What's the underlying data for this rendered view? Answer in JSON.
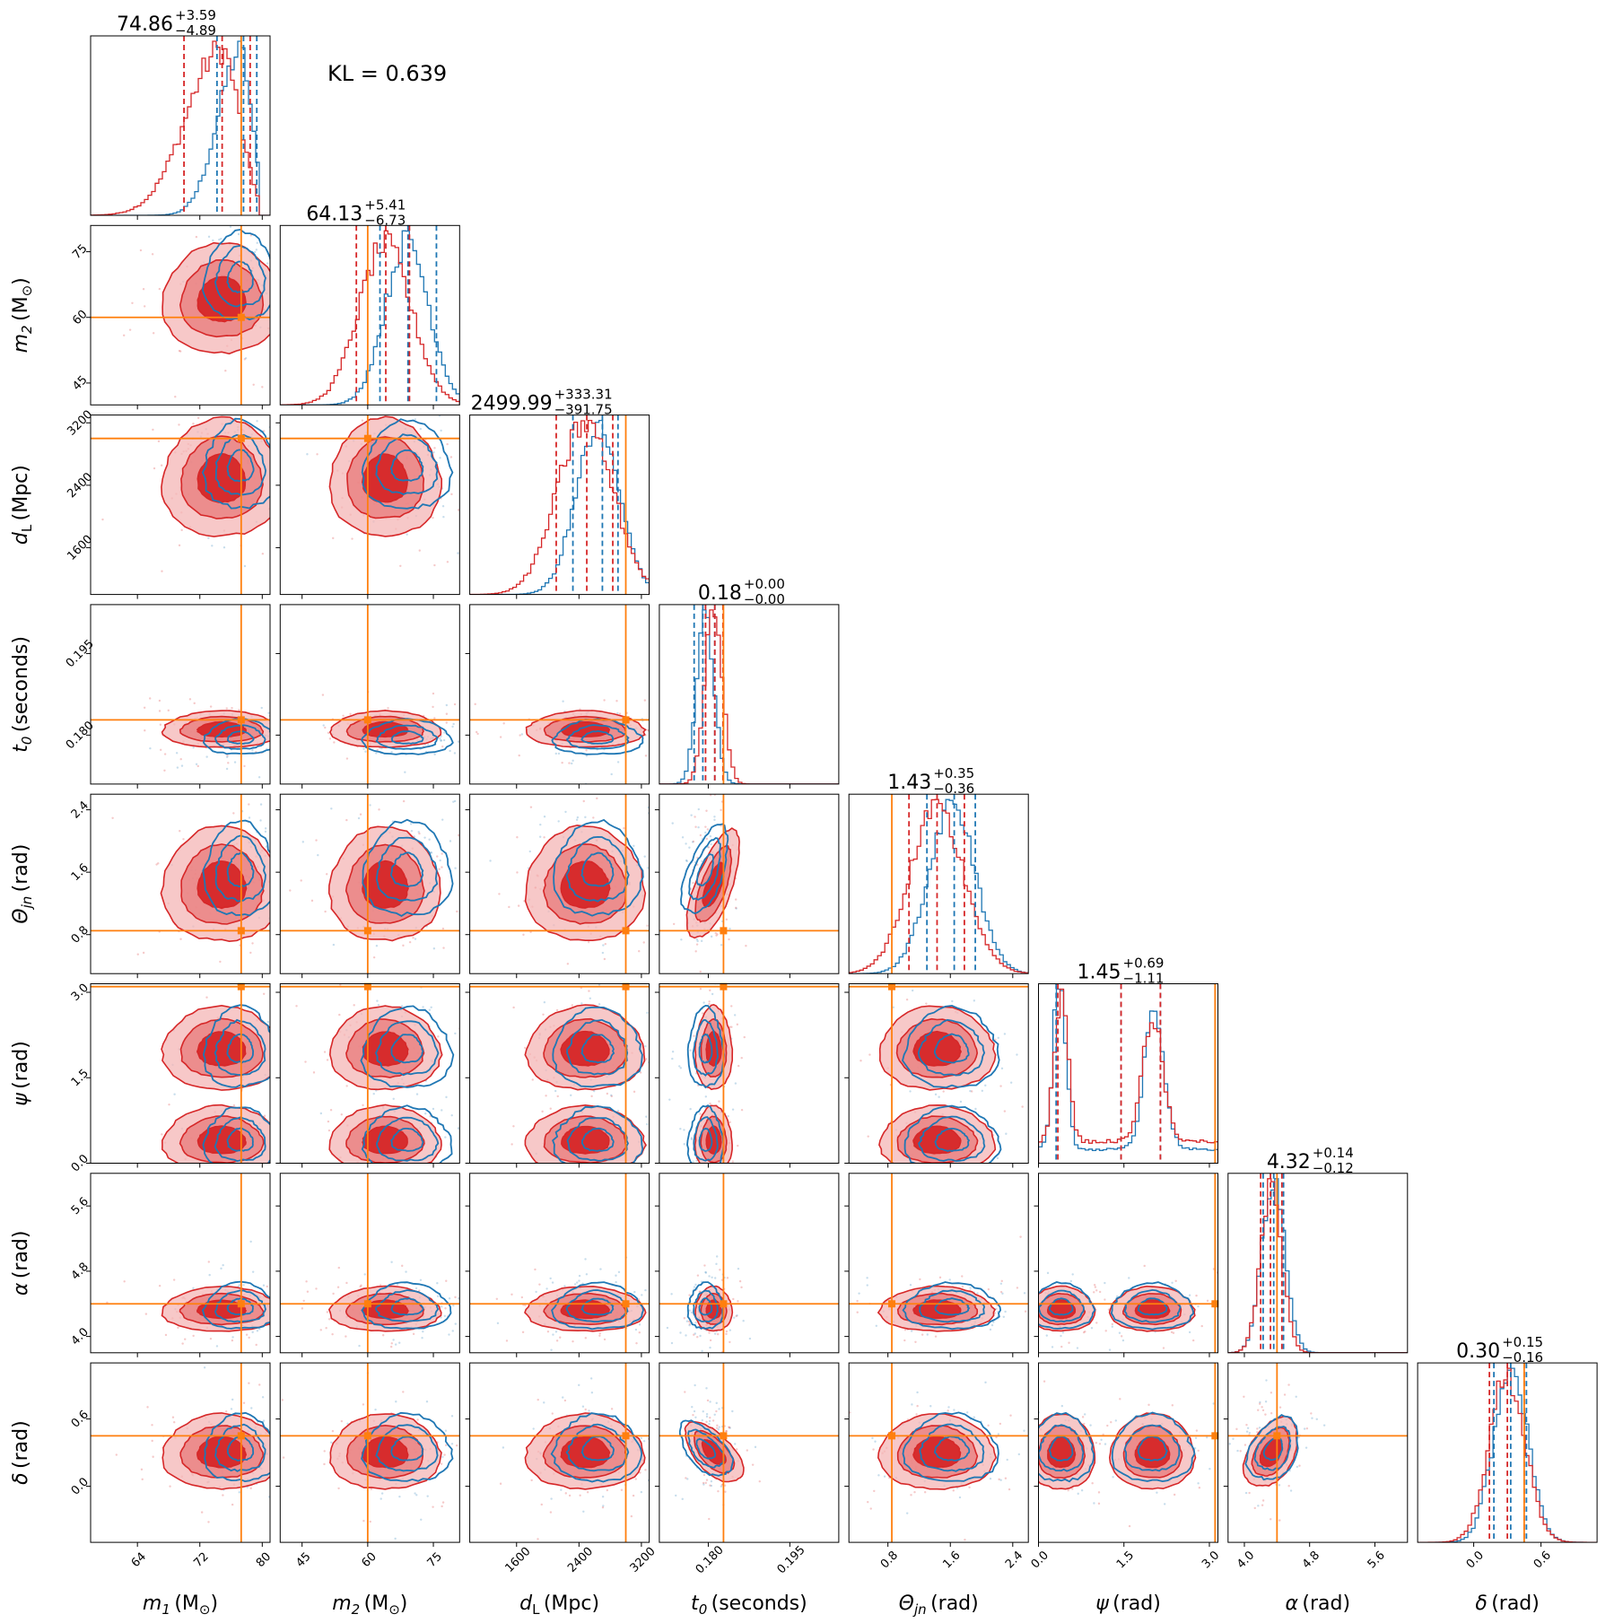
{
  "annotation": "KL = 0.639",
  "colors": {
    "blue": "#1f77b4",
    "red": "#d62728",
    "truth": "#ff7f0e"
  },
  "chart_data": {
    "type": "corner",
    "parameters": [
      {
        "key": "m1",
        "label_main": "m",
        "label_sub": "1",
        "unit": "(M",
        "unit_sun": "⊙",
        "unit_close": ")",
        "range": [
          58,
          81
        ],
        "ticks": [
          64,
          72,
          80
        ],
        "tick_labels": [
          "64",
          "72",
          "80"
        ],
        "truth": 77.3,
        "title": "74.86",
        "title_plus": "+3.59",
        "title_minus": "−4.89",
        "red_quantiles": [
          69.97,
          74.86,
          78.45
        ],
        "blue_quantiles": [
          74.2,
          77.6,
          79.3
        ],
        "red_mean": 74.8,
        "red_sd": 3.6,
        "blue_mean": 77.2,
        "blue_sd": 2.3,
        "skew": "left",
        "upper_clip": 79.5
      },
      {
        "key": "m2",
        "label_main": "m",
        "label_sub": "2",
        "unit": "(M",
        "unit_sun": "⊙",
        "unit_close": ")",
        "range": [
          40,
          81
        ],
        "ticks": [
          45,
          60,
          75
        ],
        "tick_labels": [
          "45",
          "60",
          "75"
        ],
        "truth": 60,
        "title": "64.13",
        "title_plus": "+5.41",
        "title_minus": "−6.73",
        "red_quantiles": [
          57.4,
          64.13,
          69.54
        ],
        "blue_quantiles": [
          62.8,
          69.2,
          75.7
        ],
        "red_mean": 64,
        "red_sd": 6,
        "blue_mean": 69,
        "blue_sd": 5
      },
      {
        "key": "dL",
        "label_main": "d",
        "label_sub": "L",
        "unit": "(Mpc)",
        "range": [
          1000,
          3300
        ],
        "ticks": [
          1600,
          2400,
          3200
        ],
        "tick_labels": [
          "1600",
          "2400",
          "3200"
        ],
        "truth": 3000,
        "title": "2499.99",
        "title_plus": "+333.31",
        "title_minus": "−391.75",
        "red_quantiles": [
          2108.24,
          2499.99,
          2833.3
        ],
        "blue_quantiles": [
          2322,
          2700,
          2900
        ],
        "red_mean": 2480,
        "red_sd": 360,
        "blue_mean": 2640,
        "blue_sd": 280
      },
      {
        "key": "t0",
        "label_main": "t",
        "label_sub": "0",
        "unit": "(seconds)",
        "range": [
          0.171,
          0.204
        ],
        "ticks": [
          0.18,
          0.195
        ],
        "tick_labels": [
          "0.180",
          "0.195"
        ],
        "truth": 0.1828,
        "title": "0.18",
        "title_plus": "+0.00",
        "title_minus": "−0.00",
        "red_quantiles": [
          0.1795,
          0.1812,
          0.1827
        ],
        "blue_quantiles": [
          0.1774,
          0.179,
          0.1812
        ],
        "red_mean": 0.181,
        "red_sd": 0.0016,
        "blue_mean": 0.1795,
        "blue_sd": 0.0016
      },
      {
        "key": "theta_jn",
        "label_main": "Θ",
        "label_sub": "jn",
        "unit": "(rad)",
        "range": [
          0.3,
          2.6
        ],
        "ticks": [
          0.8,
          1.6,
          2.4
        ],
        "tick_labels": [
          "0.8",
          "1.6",
          "2.4"
        ],
        "truth": 0.85,
        "title": "1.43",
        "title_plus": "+0.35",
        "title_minus": "−0.36",
        "red_quantiles": [
          1.07,
          1.43,
          1.78
        ],
        "blue_quantiles": [
          1.3,
          1.65,
          1.92
        ],
        "red_mean": 1.43,
        "red_sd": 0.35,
        "blue_mean": 1.62,
        "blue_sd": 0.3
      },
      {
        "key": "psi",
        "label_main": "ψ",
        "label_sub": "",
        "unit": "(rad)",
        "range": [
          0,
          3.15
        ],
        "ticks": [
          0,
          1.5,
          3.0
        ],
        "tick_labels": [
          "0.0",
          "1.5",
          "3.0"
        ],
        "truth": 3.1,
        "title": "1.45",
        "title_plus": "+0.69",
        "title_minus": "−1.11",
        "red_quantiles": [
          0.34,
          1.45,
          2.14
        ],
        "blue_quantiles": [
          0.31,
          1.45,
          2.14
        ],
        "bimodal": [
          0.4,
          2.0
        ]
      },
      {
        "key": "alpha",
        "label_main": "α",
        "label_sub": "",
        "unit": "(rad)",
        "range": [
          3.8,
          6.0
        ],
        "ticks": [
          4.0,
          4.8,
          5.6
        ],
        "tick_labels": [
          "4.0",
          "4.8",
          "5.6"
        ],
        "truth": 4.4,
        "title": "4.32",
        "title_plus": "+0.14",
        "title_minus": "−0.12",
        "red_quantiles": [
          4.2,
          4.32,
          4.46
        ],
        "blue_quantiles": [
          4.23,
          4.36,
          4.48
        ],
        "red_mean": 4.33,
        "red_sd": 0.13,
        "blue_mean": 4.36,
        "blue_sd": 0.14
      },
      {
        "key": "delta",
        "label_main": "δ",
        "label_sub": "",
        "unit": "(rad)",
        "range": [
          -0.5,
          1.1
        ],
        "ticks": [
          0.0,
          0.6
        ],
        "tick_labels": [
          "0.0",
          "0.6"
        ],
        "truth": 0.45,
        "title": "0.30",
        "title_plus": "+0.15",
        "title_minus": "−0.16",
        "red_quantiles": [
          0.14,
          0.3,
          0.45
        ],
        "blue_quantiles": [
          0.18,
          0.33,
          0.47
        ],
        "red_mean": 0.3,
        "red_sd": 0.16,
        "blue_mean": 0.33,
        "blue_sd": 0.15
      }
    ]
  }
}
